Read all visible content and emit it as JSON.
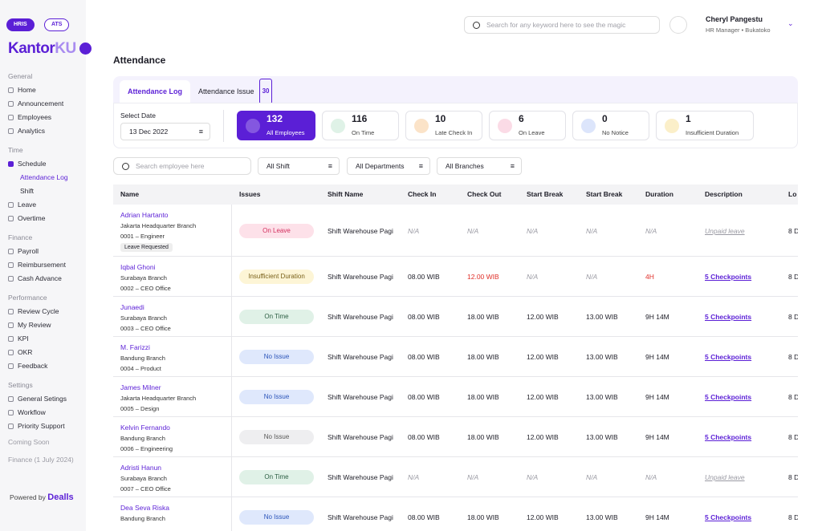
{
  "topbar": {
    "badges": [
      "HRIS",
      "ATS"
    ],
    "search_placeholder": "Search for any keyword here to see the magic",
    "user_name": "Cheryl Pangestu",
    "user_role": "HR Manager • Bukatoko"
  },
  "sidebar": {
    "logo": "Kantor",
    "logo_suffix": "KU",
    "sections": [
      {
        "title": "General",
        "items": [
          {
            "label": "Home"
          },
          {
            "label": "Announcement"
          },
          {
            "label": "Employees"
          },
          {
            "label": "Analytics"
          }
        ]
      },
      {
        "title": "Time",
        "items": [
          {
            "label": "Schedule",
            "active": true
          },
          {
            "label": "Attendance Log",
            "sub": true,
            "active": true
          },
          {
            "label": "Shift",
            "sub": true
          },
          {
            "label": "Leave"
          },
          {
            "label": "Overtime"
          }
        ]
      },
      {
        "title": "Finance",
        "items": [
          {
            "label": "Payroll"
          },
          {
            "label": "Reimbursement"
          },
          {
            "label": "Cash Advance"
          }
        ]
      },
      {
        "title": "Performance",
        "items": [
          {
            "label": "Review Cycle"
          },
          {
            "label": "My Review"
          },
          {
            "label": "KPI"
          },
          {
            "label": "OKR"
          },
          {
            "label": "Feedback"
          }
        ]
      },
      {
        "title": "Settings",
        "items": [
          {
            "label": "General Setings"
          },
          {
            "label": "Workflow"
          },
          {
            "label": "Priority Support"
          }
        ]
      }
    ],
    "coming_soon": "Coming Soon",
    "coming_item": "Finance (1 July 2024)",
    "powered_by": "Powered by",
    "brand": "Dealls"
  },
  "page": {
    "title": "Attendance",
    "tabs": [
      {
        "label": "Attendance Log",
        "active": true
      },
      {
        "label": "Attendance Issue",
        "count": 30
      }
    ],
    "date_label": "Select Date",
    "date": "13 Dec 2022",
    "stats": [
      {
        "value": 132,
        "label": "All Employees",
        "color": "#5b1fd6",
        "active": true
      },
      {
        "value": 116,
        "label": "On Time",
        "color": "#dff2e7"
      },
      {
        "value": 10,
        "label": "Late Check In",
        "color": "#fbe3c8"
      },
      {
        "value": 6,
        "label": "On Leave",
        "color": "#fbdbe6"
      },
      {
        "value": 0,
        "label": "No Notice",
        "color": "#dce5fb"
      },
      {
        "value": 1,
        "label": "Insufficient Duration",
        "color": "#fbefc9"
      }
    ],
    "filters": {
      "search_placeholder": "Search employee here",
      "dropdowns": [
        "All Shift",
        "All Departments",
        "All Branches"
      ]
    },
    "table": {
      "headers": [
        "Name",
        "Issues",
        "Shift Name",
        "Check In",
        "Check Out",
        "Start Break",
        "Start Break",
        "Duration",
        "Description",
        "Lo"
      ],
      "rows": [
        {
          "name": "Adrian Hartanto",
          "branch": "Jakarta Headquarter Branch",
          "id": "0001 – Engineer",
          "tag": "Leave Requested",
          "issue": "On Leave",
          "tone": "pink",
          "shift": "Shift Warehouse Pagi",
          "cells": [
            {
              "text": "N/A",
              "style": "na"
            },
            {
              "text": "N/A",
              "style": "na"
            },
            {
              "text": "N/A",
              "style": "na"
            },
            {
              "text": "N/A",
              "style": "na"
            },
            {
              "text": "N/A",
              "style": "na"
            }
          ],
          "description": "Unpaid leave",
          "description_style": "muted",
          "last": "8 D"
        },
        {
          "name": "Iqbal Ghoni",
          "branch": "Surabaya Branch",
          "id": "0002 – CEO Office",
          "issue": "Insufficient Duration",
          "tone": "yellow",
          "shift": "Shift Warehouse Pagi",
          "cells": [
            {
              "text": "08.00 WIB"
            },
            {
              "text": "12.00 WIB",
              "style": "alert"
            },
            {
              "text": "N/A",
              "style": "na"
            },
            {
              "text": "N/A",
              "style": "na"
            },
            {
              "text": "4H",
              "style": "alert"
            }
          ],
          "description": "5 Checkpoints",
          "description_style": "link",
          "last": "8 D"
        },
        {
          "name": "Junaedi",
          "branch": "Surabaya Branch",
          "id": "0003 – CEO Office",
          "issue": "On Time",
          "tone": "green",
          "shift": "Shift Warehouse Pagi",
          "cells": [
            {
              "text": "08.00 WIB"
            },
            {
              "text": "18.00 WIB"
            },
            {
              "text": "12.00 WIB"
            },
            {
              "text": "13.00 WIB"
            },
            {
              "text": "9H 14M"
            }
          ],
          "description": "5 Checkpoints",
          "description_style": "link",
          "last": "8 D"
        },
        {
          "name": "M. Farizzi",
          "branch": "Bandung Branch",
          "id": "0004 – Product",
          "issue": "No Issue",
          "tone": "blue",
          "shift": "Shift Warehouse Pagi",
          "cells": [
            {
              "text": "08.00 WIB"
            },
            {
              "text": "18.00 WIB"
            },
            {
              "text": "12.00 WIB"
            },
            {
              "text": "13.00 WIB"
            },
            {
              "text": "9H 14M"
            }
          ],
          "description": "5 Checkpoints",
          "description_style": "link",
          "last": "8 D"
        },
        {
          "name": "James Milner",
          "branch": "Jakarta Headquarter Branch",
          "id": "0005 – Design",
          "issue": "No Issue",
          "tone": "blue",
          "shift": "Shift Warehouse Pagi",
          "cells": [
            {
              "text": "08.00 WIB"
            },
            {
              "text": "18.00 WIB"
            },
            {
              "text": "12.00 WIB"
            },
            {
              "text": "13.00 WIB"
            },
            {
              "text": "9H 14M"
            }
          ],
          "description": "5 Checkpoints",
          "description_style": "link",
          "last": "8 D"
        },
        {
          "name": "Kelvin Fernando",
          "branch": "Bandung Branch",
          "id": "0006 – Engineering",
          "issue": "No Issue",
          "tone": "gray",
          "shift": "Shift Warehouse Pagi",
          "cells": [
            {
              "text": "08.00 WIB"
            },
            {
              "text": "18.00 WIB"
            },
            {
              "text": "12.00 WIB"
            },
            {
              "text": "13.00 WIB"
            },
            {
              "text": "9H 14M"
            }
          ],
          "description": "5 Checkpoints",
          "description_style": "link",
          "last": "8 D"
        },
        {
          "name": "Adristi Hanun",
          "branch": "Surabaya Branch",
          "id": "0007 – CEO Office",
          "issue": "On Time",
          "tone": "green",
          "shift": "Shift Warehouse Pagi",
          "cells": [
            {
              "text": "N/A",
              "style": "na"
            },
            {
              "text": "N/A",
              "style": "na"
            },
            {
              "text": "N/A",
              "style": "na"
            },
            {
              "text": "N/A",
              "style": "na"
            },
            {
              "text": "N/A",
              "style": "na"
            }
          ],
          "description": "Unpaid leave",
          "description_style": "muted",
          "last": "8 D"
        },
        {
          "name": "Dea Seva Riska",
          "branch": "Bandung Branch",
          "issue": "No Issue",
          "tone": "blue",
          "shift": "Shift Warehouse Pagi",
          "cells": [
            {
              "text": "08.00 WIB"
            },
            {
              "text": "18.00 WIB"
            },
            {
              "text": "12.00 WIB"
            },
            {
              "text": "13.00 WIB"
            },
            {
              "text": "9H 14M"
            }
          ],
          "description": "5 Checkpoints",
          "description_style": "link",
          "last": "8 D"
        }
      ]
    }
  }
}
